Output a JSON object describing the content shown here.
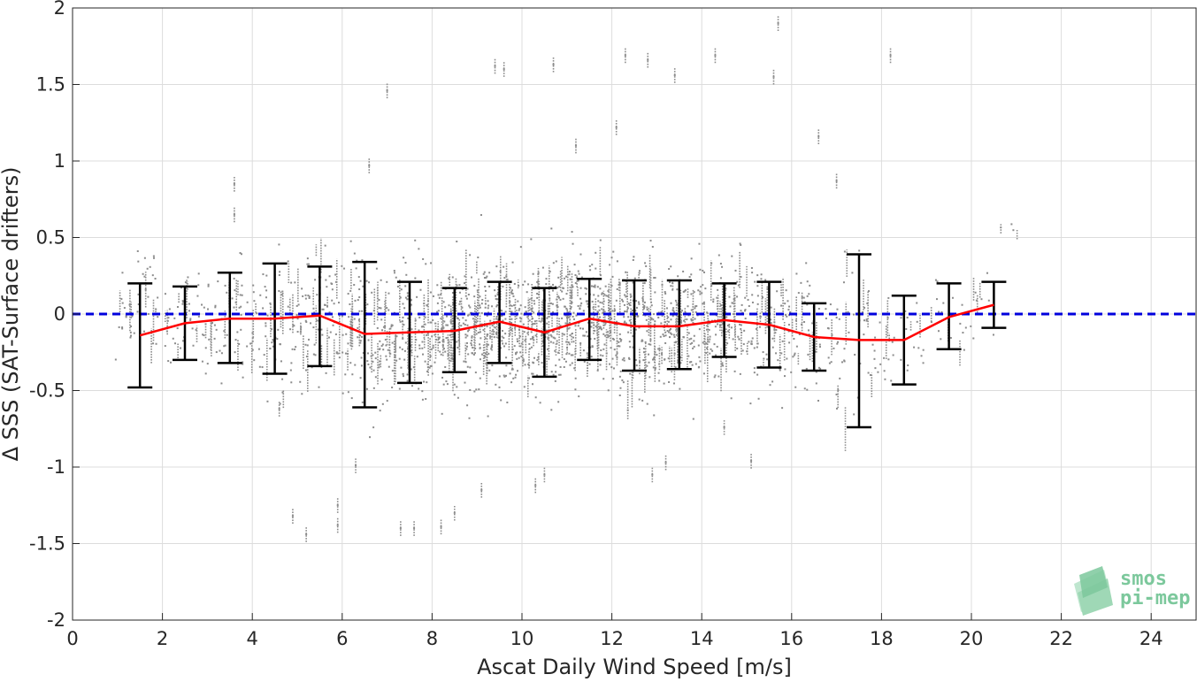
{
  "chart_data": {
    "type": "scatter",
    "title": "",
    "xlabel": "Ascat Daily Wind Speed [m/s]",
    "ylabel": "Δ SSS (SAT-Surface drifters)",
    "xlim": [
      0,
      25
    ],
    "ylim": [
      -2,
      2
    ],
    "xticks": [
      0,
      2,
      4,
      6,
      8,
      10,
      12,
      14,
      16,
      18,
      20,
      22,
      24
    ],
    "yticks": [
      -2,
      -1.5,
      -1,
      -0.5,
      0,
      0.5,
      1,
      1.5,
      2
    ],
    "grid": true,
    "colors": {
      "scatter": "#8c8c8c",
      "mean_line": "#ff0000",
      "error_bars": "#000000",
      "zero_line": "#0000dd"
    },
    "reference_line": {
      "y": 0,
      "style": "dashed"
    },
    "binned_stats": {
      "x": [
        1.5,
        2.5,
        3.5,
        4.5,
        5.5,
        6.5,
        7.5,
        8.5,
        9.5,
        10.5,
        11.5,
        12.5,
        13.5,
        14.5,
        15.5,
        16.5,
        17.5,
        18.5,
        19.5,
        20.5
      ],
      "mean": [
        -0.14,
        -0.06,
        -0.03,
        -0.03,
        -0.01,
        -0.13,
        -0.12,
        -0.11,
        -0.05,
        -0.12,
        -0.03,
        -0.08,
        -0.08,
        -0.04,
        -0.07,
        -0.15,
        -0.17,
        -0.17,
        -0.02,
        0.06
      ],
      "upper": [
        0.2,
        0.18,
        0.27,
        0.33,
        0.31,
        0.34,
        0.21,
        0.17,
        0.21,
        0.17,
        0.23,
        0.22,
        0.22,
        0.2,
        0.21,
        0.07,
        0.39,
        0.12,
        0.2,
        0.21
      ],
      "lower": [
        -0.48,
        -0.3,
        -0.32,
        -0.39,
        -0.34,
        -0.61,
        -0.45,
        -0.38,
        -0.32,
        -0.41,
        -0.3,
        -0.37,
        -0.36,
        -0.28,
        -0.35,
        -0.37,
        -0.74,
        -0.46,
        -0.23,
        -0.09
      ]
    },
    "scatter_clusters": [
      {
        "x": 1.2,
        "n": 18,
        "mu": -0.05,
        "sd": 0.18
      },
      {
        "x": 1.7,
        "n": 22,
        "mu": 0.1,
        "sd": 0.25
      },
      {
        "x": 2.3,
        "n": 22,
        "mu": -0.05,
        "sd": 0.2
      },
      {
        "x": 2.7,
        "n": 22,
        "mu": -0.05,
        "sd": 0.2
      },
      {
        "x": 3.2,
        "n": 26,
        "mu": -0.05,
        "sd": 0.22
      },
      {
        "x": 3.7,
        "n": 26,
        "mu": -0.02,
        "sd": 0.28
      },
      {
        "x": 4.2,
        "n": 32,
        "mu": -0.05,
        "sd": 0.3
      },
      {
        "x": 4.7,
        "n": 34,
        "mu": -0.05,
        "sd": 0.35
      },
      {
        "x": 5.2,
        "n": 40,
        "mu": -0.02,
        "sd": 0.32
      },
      {
        "x": 5.7,
        "n": 40,
        "mu": -0.02,
        "sd": 0.3
      },
      {
        "x": 6.2,
        "n": 48,
        "mu": -0.12,
        "sd": 0.36
      },
      {
        "x": 6.7,
        "n": 50,
        "mu": -0.15,
        "sd": 0.38
      },
      {
        "x": 7.2,
        "n": 56,
        "mu": -0.12,
        "sd": 0.3
      },
      {
        "x": 7.7,
        "n": 60,
        "mu": -0.1,
        "sd": 0.3
      },
      {
        "x": 8.2,
        "n": 72,
        "mu": -0.1,
        "sd": 0.3
      },
      {
        "x": 8.7,
        "n": 80,
        "mu": -0.08,
        "sd": 0.3
      },
      {
        "x": 9.2,
        "n": 88,
        "mu": -0.05,
        "sd": 0.28
      },
      {
        "x": 9.7,
        "n": 88,
        "mu": -0.05,
        "sd": 0.28
      },
      {
        "x": 10.2,
        "n": 86,
        "mu": -0.1,
        "sd": 0.3
      },
      {
        "x": 10.7,
        "n": 86,
        "mu": -0.08,
        "sd": 0.3
      },
      {
        "x": 11.2,
        "n": 86,
        "mu": -0.02,
        "sd": 0.3
      },
      {
        "x": 11.7,
        "n": 84,
        "mu": -0.02,
        "sd": 0.3
      },
      {
        "x": 12.2,
        "n": 80,
        "mu": -0.06,
        "sd": 0.3
      },
      {
        "x": 12.7,
        "n": 80,
        "mu": -0.06,
        "sd": 0.32
      },
      {
        "x": 13.2,
        "n": 70,
        "mu": -0.06,
        "sd": 0.3
      },
      {
        "x": 13.7,
        "n": 66,
        "mu": -0.05,
        "sd": 0.3
      },
      {
        "x": 14.2,
        "n": 58,
        "mu": -0.04,
        "sd": 0.26
      },
      {
        "x": 14.7,
        "n": 54,
        "mu": -0.04,
        "sd": 0.26
      },
      {
        "x": 15.2,
        "n": 44,
        "mu": -0.06,
        "sd": 0.28
      },
      {
        "x": 15.7,
        "n": 38,
        "mu": -0.08,
        "sd": 0.28
      },
      {
        "x": 16.2,
        "n": 30,
        "mu": -0.12,
        "sd": 0.25
      },
      {
        "x": 16.7,
        "n": 26,
        "mu": -0.15,
        "sd": 0.25
      },
      {
        "x": 17.2,
        "n": 22,
        "mu": -0.15,
        "sd": 0.4
      },
      {
        "x": 17.7,
        "n": 20,
        "mu": -0.1,
        "sd": 0.4
      },
      {
        "x": 18.2,
        "n": 16,
        "mu": -0.15,
        "sd": 0.25
      },
      {
        "x": 18.7,
        "n": 12,
        "mu": -0.2,
        "sd": 0.22
      },
      {
        "x": 19.3,
        "n": 10,
        "mu": 0.0,
        "sd": 0.2
      },
      {
        "x": 19.8,
        "n": 8,
        "mu": -0.05,
        "sd": 0.2
      },
      {
        "x": 20.3,
        "n": 6,
        "mu": 0.05,
        "sd": 0.15
      },
      {
        "x": 20.8,
        "n": 3,
        "mu": 0.55,
        "sd": 0.05
      }
    ],
    "outliers": [
      {
        "x": 3.6,
        "y": 0.85
      },
      {
        "x": 3.6,
        "y": 0.65
      },
      {
        "x": 4.6,
        "y": -0.62
      },
      {
        "x": 4.9,
        "y": -1.32
      },
      {
        "x": 5.2,
        "y": -1.44
      },
      {
        "x": 5.9,
        "y": -1.25
      },
      {
        "x": 5.9,
        "y": -1.38
      },
      {
        "x": 6.6,
        "y": 0.97
      },
      {
        "x": 6.3,
        "y": -0.99
      },
      {
        "x": 7.0,
        "y": 1.46
      },
      {
        "x": 7.3,
        "y": -1.4
      },
      {
        "x": 7.6,
        "y": -1.4
      },
      {
        "x": 8.2,
        "y": -1.39
      },
      {
        "x": 8.5,
        "y": -1.3
      },
      {
        "x": 9.1,
        "y": -1.15
      },
      {
        "x": 9.4,
        "y": 1.62
      },
      {
        "x": 9.6,
        "y": 1.6
      },
      {
        "x": 10.3,
        "y": -1.12
      },
      {
        "x": 10.5,
        "y": -1.05
      },
      {
        "x": 10.7,
        "y": 1.63
      },
      {
        "x": 12.3,
        "y": 1.69
      },
      {
        "x": 12.8,
        "y": 1.66
      },
      {
        "x": 13.4,
        "y": 1.56
      },
      {
        "x": 13.2,
        "y": -0.97
      },
      {
        "x": 12.9,
        "y": -1.05
      },
      {
        "x": 14.3,
        "y": 1.69
      },
      {
        "x": 14.5,
        "y": -0.74
      },
      {
        "x": 15.1,
        "y": -0.96
      },
      {
        "x": 15.7,
        "y": 1.9
      },
      {
        "x": 15.6,
        "y": 1.55
      },
      {
        "x": 16.6,
        "y": 1.16
      },
      {
        "x": 17.0,
        "y": 0.87
      },
      {
        "x": 18.2,
        "y": 1.69
      },
      {
        "x": 12.1,
        "y": 1.22
      },
      {
        "x": 11.2,
        "y": 1.1
      }
    ]
  },
  "watermark": {
    "line1": "smos",
    "line2": "pi-mep"
  }
}
